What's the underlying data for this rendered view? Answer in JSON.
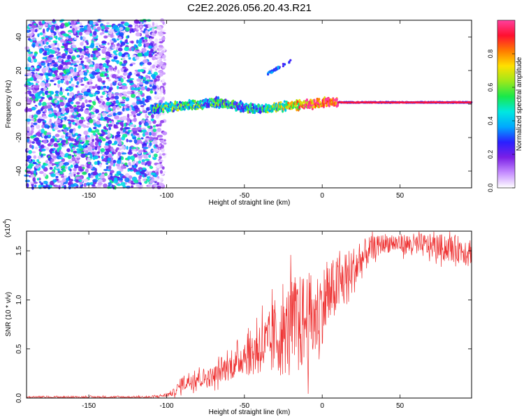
{
  "title": "C2E2.2026.056.20.43.R21",
  "chart_data": [
    {
      "type": "heatmap",
      "title": "C2E2.2026.056.20.43.R21",
      "xlabel": "Height of straight line (km)",
      "ylabel": "Frequency (Hz)",
      "xlim": [
        -190,
        96
      ],
      "ylim": [
        -50,
        50
      ],
      "xticks": [
        -150,
        -100,
        -50,
        0,
        50
      ],
      "xtick_labels": [
        "-150",
        "-100",
        "-50",
        "0",
        "50"
      ],
      "yticks": [
        -40,
        -20,
        0,
        20,
        40
      ],
      "ytick_labels": [
        "-40",
        "-20",
        "0",
        "20",
        "40"
      ],
      "colorbar": {
        "label": "Normalized spectral amplitude",
        "range": [
          0,
          1
        ],
        "ticks": [
          0.0,
          0.2,
          0.4,
          0.6,
          0.8
        ],
        "tick_labels": [
          "0.0",
          "0.2",
          "0.4",
          "0.6",
          "0.8"
        ],
        "colors": [
          "#ffffff",
          "#c58cff",
          "#7b1fe6",
          "#2a20ff",
          "#00a8ff",
          "#00e8e0",
          "#19e84a",
          "#9ee81a",
          "#ffe000",
          "#ff7a00",
          "#ff1030",
          "#ff3f9e"
        ]
      },
      "noise_region_x": [
        -190,
        -107
      ],
      "signal_track": [
        {
          "x": -110,
          "y": -3,
          "amp": 0.45
        },
        {
          "x": -100,
          "y": -2,
          "amp": 0.5
        },
        {
          "x": -90,
          "y": -1,
          "amp": 0.5
        },
        {
          "x": -80,
          "y": 0,
          "amp": 0.45
        },
        {
          "x": -70,
          "y": 1,
          "amp": 0.45
        },
        {
          "x": -60,
          "y": 0,
          "amp": 0.45
        },
        {
          "x": -50,
          "y": -2,
          "amp": 0.4
        },
        {
          "x": -40,
          "y": -3,
          "amp": 0.45
        },
        {
          "x": -30,
          "y": -2,
          "amp": 0.55
        },
        {
          "x": -20,
          "y": -1,
          "amp": 0.7
        },
        {
          "x": -10,
          "y": 0,
          "amp": 0.85
        },
        {
          "x": 0,
          "y": 0.5,
          "amp": 0.9
        },
        {
          "x": 10,
          "y": 1,
          "amp": 0.95
        },
        {
          "x": 30,
          "y": 1,
          "amp": 0.97
        },
        {
          "x": 60,
          "y": 1,
          "amp": 0.98
        },
        {
          "x": 96,
          "y": 1,
          "amp": 0.98
        }
      ],
      "secondary_streak": {
        "x": [
          -35,
          -20
        ],
        "y": [
          18,
          26
        ],
        "amp": 0.35
      }
    },
    {
      "type": "line",
      "xlabel": "Height of straight line (km)",
      "ylabel": "SNR (10 * v/v)",
      "y_multiplier": "(x10",
      "y_multiplier_exp": "4",
      "y_multiplier_close": ")",
      "xlim": [
        -190,
        96
      ],
      "ylim": [
        0,
        1.7
      ],
      "xticks": [
        -150,
        -100,
        -50,
        0,
        50
      ],
      "xtick_labels": [
        "-150",
        "-100",
        "-50",
        "0",
        "50"
      ],
      "yticks": [
        0.0,
        0.5,
        1.0,
        1.5
      ],
      "ytick_labels": [
        "0.0",
        "0.5",
        "1.0",
        "1.5"
      ],
      "color": "#ee3030",
      "series": [
        {
          "name": "SNR",
          "x": [
            -190,
            -170,
            -150,
            -130,
            -110,
            -100,
            -95,
            -90,
            -85,
            -80,
            -75,
            -70,
            -65,
            -60,
            -55,
            -50,
            -45,
            -40,
            -35,
            -30,
            -25,
            -20,
            -15,
            -10,
            -5,
            0,
            5,
            10,
            15,
            20,
            25,
            30,
            35,
            40,
            45,
            50,
            60,
            70,
            80,
            96
          ],
          "values": [
            0.01,
            0.01,
            0.01,
            0.01,
            0.01,
            0.03,
            0.06,
            0.15,
            0.18,
            0.22,
            0.2,
            0.22,
            0.28,
            0.32,
            0.35,
            0.45,
            0.45,
            0.55,
            0.5,
            0.65,
            0.6,
            0.8,
            0.75,
            0.8,
            0.8,
            0.95,
            1.05,
            1.15,
            1.2,
            1.3,
            1.4,
            1.5,
            1.55,
            1.58,
            1.58,
            1.57,
            1.56,
            1.55,
            1.53,
            1.5
          ],
          "spread": [
            0.01,
            0.01,
            0.01,
            0.01,
            0.01,
            0.02,
            0.04,
            0.08,
            0.1,
            0.12,
            0.1,
            0.1,
            0.12,
            0.14,
            0.15,
            0.2,
            0.25,
            0.3,
            0.35,
            0.4,
            0.4,
            0.45,
            0.5,
            0.5,
            0.45,
            0.4,
            0.35,
            0.3,
            0.3,
            0.25,
            0.2,
            0.15,
            0.1,
            0.1,
            0.1,
            0.1,
            0.12,
            0.12,
            0.14,
            0.14
          ]
        }
      ]
    }
  ]
}
